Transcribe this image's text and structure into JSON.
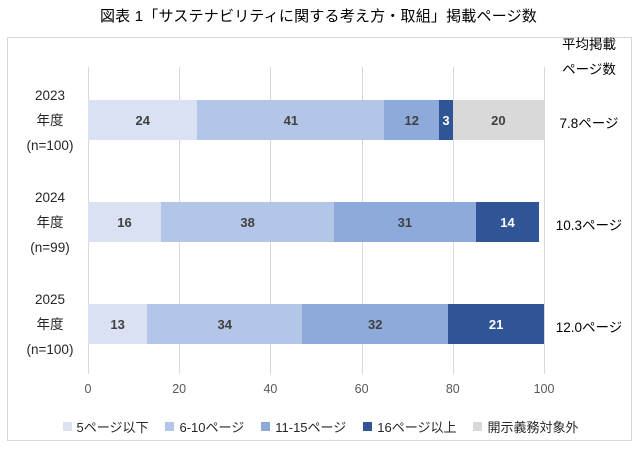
{
  "title": "図表 1「サステナビリティに関する考え方・取組」掲載ページ数",
  "avg_header": {
    "line1": "平均掲載",
    "line2": "ページ数"
  },
  "chart_data": {
    "type": "bar",
    "stacked": true,
    "orientation": "horizontal",
    "title": "図表 1「サステナビリティに関する考え方・取組」掲載ページ数",
    "categories": [
      {
        "lines": [
          "2023",
          "年度",
          "(n=100)"
        ],
        "average": "7.8ページ"
      },
      {
        "lines": [
          "2024",
          "年度",
          "(n=99)"
        ],
        "average": "10.3ページ"
      },
      {
        "lines": [
          "2025",
          "年度",
          "(n=100)"
        ],
        "average": "12.0ページ"
      }
    ],
    "series": [
      {
        "name": "5ページ以下",
        "color": "#d9e1f2",
        "label_color": "#404040",
        "values": [
          24,
          16,
          13
        ]
      },
      {
        "name": "6-10ページ",
        "color": "#b4c6e7",
        "label_color": "#404040",
        "values": [
          41,
          38,
          34
        ]
      },
      {
        "name": "11-15ページ",
        "color": "#8eaadb",
        "label_color": "#404040",
        "values": [
          12,
          31,
          32
        ]
      },
      {
        "name": "16ページ以上",
        "color": "#2f5597",
        "label_color": "#ffffff",
        "values": [
          3,
          14,
          21
        ]
      },
      {
        "name": "開示義務対象外",
        "color": "#d9d9d9",
        "label_color": "#404040",
        "values": [
          20,
          0,
          0
        ]
      }
    ],
    "x_ticks": [
      0,
      20,
      40,
      60,
      80,
      100
    ],
    "xlim": [
      0,
      100
    ],
    "grid": true,
    "legend_position": "bottom",
    "colors": {
      "gridline": "#d9d9d9",
      "tick_label": "#595959",
      "border": "#d7d7d7",
      "value_label": "#404040"
    }
  }
}
